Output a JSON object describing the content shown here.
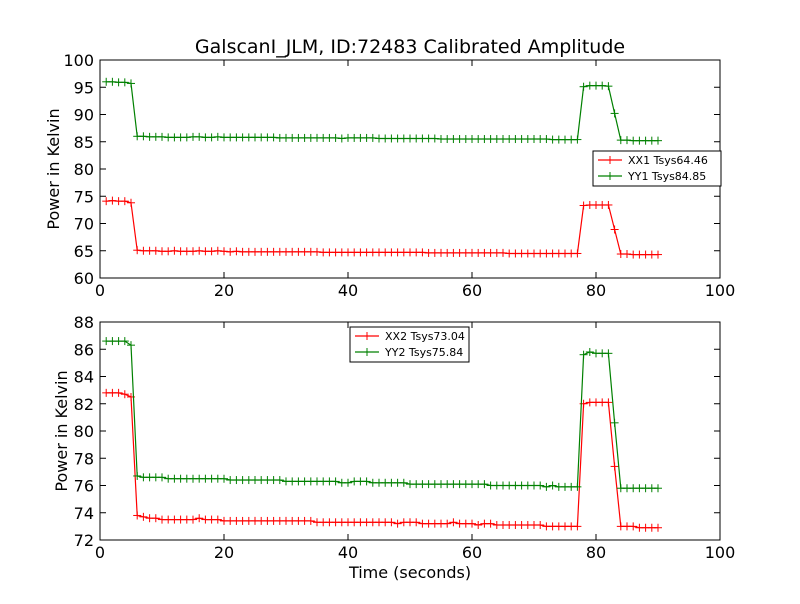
{
  "chart_data": [
    {
      "type": "line",
      "title": "GalscanI_JLM, ID:72483 Calibrated Amplitude",
      "xlabel": "",
      "ylabel": "Power in Kelvin",
      "xlim": [
        0,
        100
      ],
      "ylim": [
        60,
        100
      ],
      "xticks": [
        "0",
        "20",
        "40",
        "60",
        "80",
        "100"
      ],
      "yticks": [
        "60",
        "65",
        "70",
        "75",
        "80",
        "85",
        "90",
        "95",
        "100"
      ],
      "legend_position": "center-right",
      "grid": false,
      "x": [
        1,
        2,
        3,
        4,
        5,
        6,
        7,
        8,
        9,
        10,
        11,
        12,
        13,
        14,
        15,
        16,
        17,
        18,
        19,
        20,
        21,
        22,
        23,
        24,
        25,
        26,
        27,
        28,
        29,
        30,
        31,
        32,
        33,
        34,
        35,
        36,
        37,
        38,
        39,
        40,
        41,
        42,
        43,
        44,
        45,
        46,
        47,
        48,
        49,
        50,
        51,
        52,
        53,
        54,
        55,
        56,
        57,
        58,
        59,
        60,
        61,
        62,
        63,
        64,
        65,
        66,
        67,
        68,
        69,
        70,
        71,
        72,
        73,
        74,
        75,
        76,
        77,
        78,
        79,
        80,
        81,
        82,
        83,
        84,
        85,
        86,
        87,
        88,
        89,
        90
      ],
      "series": [
        {
          "name": "XX1 Tsys64.46",
          "color": "#ff0000",
          "values": [
            74.1,
            74.2,
            74.1,
            74.1,
            73.8,
            65.1,
            65.0,
            65.0,
            65.0,
            64.9,
            64.9,
            65.0,
            64.9,
            64.9,
            64.9,
            65.0,
            64.9,
            64.9,
            65.0,
            64.9,
            64.8,
            64.9,
            64.8,
            64.8,
            64.8,
            64.8,
            64.8,
            64.8,
            64.8,
            64.8,
            64.8,
            64.8,
            64.8,
            64.8,
            64.8,
            64.7,
            64.7,
            64.7,
            64.7,
            64.7,
            64.7,
            64.7,
            64.7,
            64.7,
            64.7,
            64.7,
            64.7,
            64.7,
            64.7,
            64.7,
            64.7,
            64.7,
            64.6,
            64.6,
            64.6,
            64.6,
            64.6,
            64.6,
            64.6,
            64.6,
            64.6,
            64.6,
            64.6,
            64.6,
            64.6,
            64.5,
            64.5,
            64.5,
            64.5,
            64.5,
            64.5,
            64.5,
            64.5,
            64.5,
            64.5,
            64.5,
            64.5,
            73.3,
            73.4,
            73.4,
            73.4,
            73.4,
            68.9,
            64.4,
            64.4,
            64.3,
            64.3,
            64.3,
            64.3,
            64.3
          ]
        },
        {
          "name": "YY1 Tsys84.85",
          "color": "#008000",
          "values": [
            96.0,
            96.0,
            95.9,
            95.9,
            95.7,
            86.0,
            86.0,
            85.9,
            85.9,
            85.9,
            85.8,
            85.8,
            85.8,
            85.8,
            85.9,
            85.9,
            85.8,
            85.8,
            85.9,
            85.8,
            85.8,
            85.8,
            85.8,
            85.8,
            85.8,
            85.8,
            85.8,
            85.8,
            85.7,
            85.7,
            85.7,
            85.7,
            85.7,
            85.7,
            85.7,
            85.7,
            85.7,
            85.7,
            85.6,
            85.7,
            85.7,
            85.7,
            85.7,
            85.7,
            85.6,
            85.6,
            85.6,
            85.6,
            85.6,
            85.6,
            85.6,
            85.6,
            85.6,
            85.6,
            85.5,
            85.5,
            85.5,
            85.5,
            85.5,
            85.5,
            85.5,
            85.5,
            85.5,
            85.5,
            85.5,
            85.5,
            85.5,
            85.5,
            85.5,
            85.5,
            85.5,
            85.5,
            85.4,
            85.4,
            85.4,
            85.4,
            85.4,
            95.1,
            95.3,
            95.3,
            95.3,
            95.2,
            90.2,
            85.3,
            85.3,
            85.2,
            85.2,
            85.2,
            85.2,
            85.2
          ]
        }
      ]
    },
    {
      "type": "line",
      "title": "",
      "xlabel": "Time (seconds)",
      "ylabel": "Power in Kelvin",
      "xlim": [
        0,
        100
      ],
      "ylim": [
        72,
        88
      ],
      "xticks": [
        "0",
        "20",
        "40",
        "60",
        "80",
        "100"
      ],
      "yticks": [
        "72",
        "74",
        "76",
        "78",
        "80",
        "82",
        "84",
        "86",
        "88"
      ],
      "legend_position": "upper-center",
      "grid": false,
      "x": [
        1,
        2,
        3,
        4,
        5,
        6,
        7,
        8,
        9,
        10,
        11,
        12,
        13,
        14,
        15,
        16,
        17,
        18,
        19,
        20,
        21,
        22,
        23,
        24,
        25,
        26,
        27,
        28,
        29,
        30,
        31,
        32,
        33,
        34,
        35,
        36,
        37,
        38,
        39,
        40,
        41,
        42,
        43,
        44,
        45,
        46,
        47,
        48,
        49,
        50,
        51,
        52,
        53,
        54,
        55,
        56,
        57,
        58,
        59,
        60,
        61,
        62,
        63,
        64,
        65,
        66,
        67,
        68,
        69,
        70,
        71,
        72,
        73,
        74,
        75,
        76,
        77,
        78,
        79,
        80,
        81,
        82,
        83,
        84,
        85,
        86,
        87,
        88,
        89,
        90
      ],
      "series": [
        {
          "name": "XX2 Tsys73.04",
          "color": "#ff0000",
          "values": [
            82.8,
            82.8,
            82.8,
            82.7,
            82.5,
            73.8,
            73.7,
            73.6,
            73.6,
            73.5,
            73.5,
            73.5,
            73.5,
            73.5,
            73.5,
            73.6,
            73.5,
            73.5,
            73.5,
            73.4,
            73.4,
            73.4,
            73.4,
            73.4,
            73.4,
            73.4,
            73.4,
            73.4,
            73.4,
            73.4,
            73.4,
            73.4,
            73.4,
            73.4,
            73.3,
            73.3,
            73.3,
            73.3,
            73.3,
            73.3,
            73.3,
            73.3,
            73.3,
            73.3,
            73.3,
            73.3,
            73.3,
            73.2,
            73.3,
            73.3,
            73.3,
            73.2,
            73.2,
            73.2,
            73.2,
            73.2,
            73.3,
            73.2,
            73.2,
            73.2,
            73.1,
            73.2,
            73.2,
            73.1,
            73.1,
            73.1,
            73.1,
            73.1,
            73.1,
            73.1,
            73.1,
            73.0,
            73.0,
            73.0,
            73.0,
            73.0,
            73.0,
            82.0,
            82.1,
            82.1,
            82.1,
            82.1,
            77.4,
            73.0,
            73.0,
            73.0,
            72.9,
            72.9,
            72.9,
            72.9
          ]
        },
        {
          "name": "YY2 Tsys75.84",
          "color": "#008000",
          "values": [
            86.6,
            86.6,
            86.6,
            86.6,
            86.3,
            76.7,
            76.6,
            76.6,
            76.6,
            76.6,
            76.5,
            76.5,
            76.5,
            76.5,
            76.5,
            76.5,
            76.5,
            76.5,
            76.5,
            76.5,
            76.4,
            76.4,
            76.4,
            76.4,
            76.4,
            76.4,
            76.4,
            76.4,
            76.4,
            76.3,
            76.3,
            76.3,
            76.3,
            76.3,
            76.3,
            76.3,
            76.3,
            76.3,
            76.2,
            76.2,
            76.3,
            76.3,
            76.3,
            76.2,
            76.2,
            76.2,
            76.2,
            76.2,
            76.2,
            76.1,
            76.1,
            76.1,
            76.1,
            76.1,
            76.1,
            76.1,
            76.1,
            76.1,
            76.1,
            76.1,
            76.1,
            76.1,
            76.0,
            76.0,
            76.0,
            76.0,
            76.0,
            76.0,
            76.0,
            76.0,
            76.0,
            75.9,
            76.0,
            75.9,
            75.9,
            75.9,
            75.9,
            85.6,
            85.8,
            85.7,
            85.7,
            85.7,
            80.6,
            75.8,
            75.8,
            75.8,
            75.8,
            75.8,
            75.8,
            75.8
          ]
        }
      ]
    }
  ]
}
